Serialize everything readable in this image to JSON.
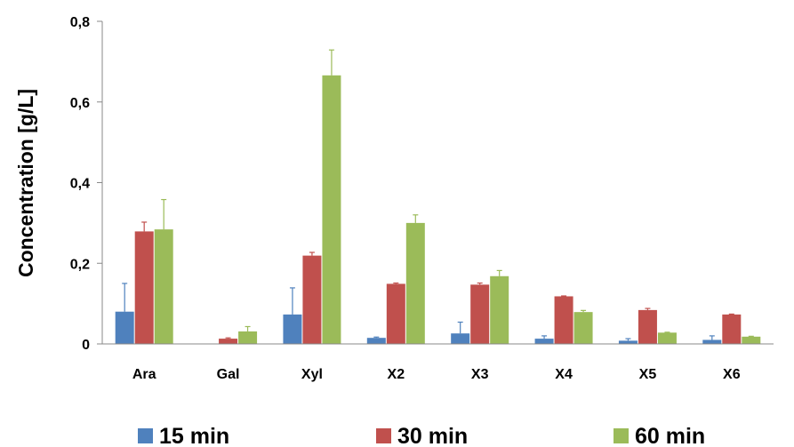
{
  "chart_data": {
    "type": "bar",
    "ylabel": "Concentration [g/L]",
    "xlabel": "",
    "title": "",
    "ylim": [
      0,
      0.8
    ],
    "yticks": [
      {
        "value": 0,
        "label": "0"
      },
      {
        "value": 0.2,
        "label": "0,2"
      },
      {
        "value": 0.4,
        "label": "0,4"
      },
      {
        "value": 0.6,
        "label": "0,6"
      },
      {
        "value": 0.8,
        "label": "0,8"
      }
    ],
    "categories": [
      "Ara",
      "Gal",
      "Xyl",
      "X2",
      "X3",
      "X4",
      "X5",
      "X6"
    ],
    "series": [
      {
        "name": "15 min",
        "color": "#4f81bd",
        "values": [
          0.08,
          0.0,
          0.073,
          0.015,
          0.026,
          0.013,
          0.008,
          0.01
        ],
        "errors": [
          0.07,
          0.0,
          0.066,
          0.002,
          0.028,
          0.007,
          0.005,
          0.01
        ]
      },
      {
        "name": "30 min",
        "color": "#c0504d",
        "values": [
          0.279,
          0.013,
          0.219,
          0.149,
          0.147,
          0.118,
          0.084,
          0.073
        ],
        "errors": [
          0.023,
          0.002,
          0.008,
          0.002,
          0.004,
          0.001,
          0.004,
          0.001
        ]
      },
      {
        "name": "60 min",
        "color": "#9bbb59",
        "values": [
          0.284,
          0.031,
          0.666,
          0.3,
          0.168,
          0.079,
          0.028,
          0.018
        ],
        "errors": [
          0.074,
          0.012,
          0.063,
          0.02,
          0.014,
          0.004,
          0.001,
          0.001
        ]
      }
    ],
    "grid": false,
    "legend_position": "bottom"
  }
}
